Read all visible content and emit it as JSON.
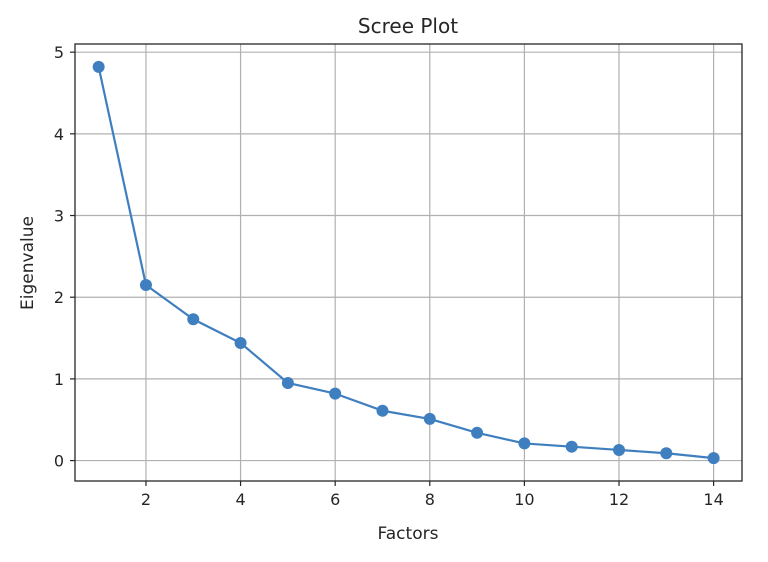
{
  "chart_data": {
    "type": "line",
    "title": "Scree Plot",
    "xlabel": "Factors",
    "ylabel": "Eigenvalue",
    "x": [
      1,
      2,
      3,
      4,
      5,
      6,
      7,
      8,
      9,
      10,
      11,
      12,
      13,
      14
    ],
    "series": [
      {
        "values": [
          4.82,
          2.15,
          1.73,
          1.44,
          0.95,
          0.82,
          0.61,
          0.51,
          0.34,
          0.21,
          0.17,
          0.13,
          0.09,
          0.03
        ],
        "color": "#3f7fbf",
        "marker": "circle"
      }
    ],
    "xlim": [
      0.5,
      14.6
    ],
    "ylim": [
      -0.25,
      5.1
    ],
    "xticks": [
      2,
      4,
      6,
      8,
      10,
      12,
      14
    ],
    "yticks": [
      0,
      1,
      2,
      3,
      4,
      5
    ],
    "grid": true
  }
}
